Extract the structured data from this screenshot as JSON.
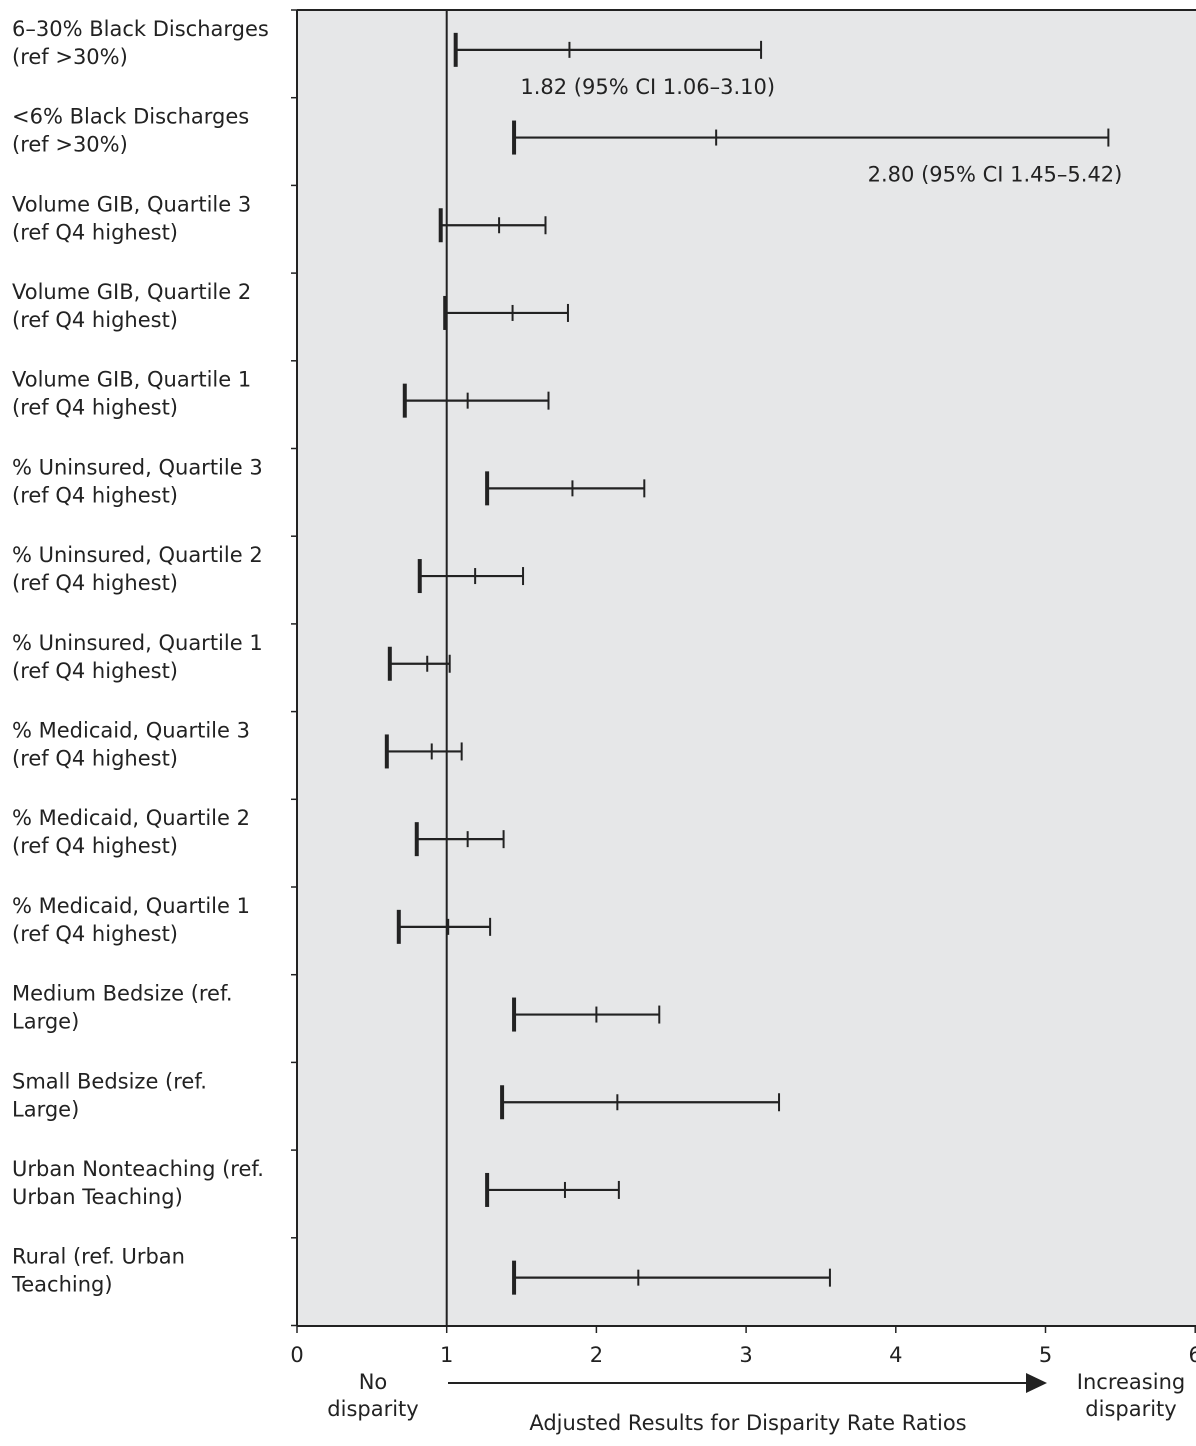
{
  "chart_data": {
    "type": "forest",
    "xlabel": "Adjusted Results for Disparity Rate Ratios",
    "x_tick_labels": [
      "0",
      "1",
      "2",
      "3",
      "4",
      "5",
      "6"
    ],
    "xlim": [
      0,
      6
    ],
    "reference_value": 1,
    "reference_label": "No disparity",
    "direction_label": "Increasing disparity",
    "grid": false,
    "colors": {
      "panel": "#e6e7e8",
      "ink": "#222222"
    },
    "rows": [
      {
        "label": "6–30% Black Discharges (ref >30%)",
        "estimate": 1.82,
        "ci_low": 1.06,
        "ci_high": 3.1,
        "annotation": "1.82 (95% CI 1.06–3.10)"
      },
      {
        "label": "<6% Black Discharges (ref >30%)",
        "estimate": 2.8,
        "ci_low": 1.45,
        "ci_high": 5.42,
        "annotation": "2.80 (95% CI 1.45–5.42)"
      },
      {
        "label": "Volume GIB, Quartile 3 (ref Q4 highest)",
        "estimate": 1.35,
        "ci_low": 0.96,
        "ci_high": 1.66,
        "annotation": ""
      },
      {
        "label": "Volume GIB, Quartile 2 (ref Q4 highest)",
        "estimate": 1.44,
        "ci_low": 0.99,
        "ci_high": 1.81,
        "annotation": ""
      },
      {
        "label": "Volume GIB, Quartile 1 (ref Q4 highest)",
        "estimate": 1.14,
        "ci_low": 0.72,
        "ci_high": 1.68,
        "annotation": ""
      },
      {
        "label": "% Uninsured, Quartile 3 (ref Q4 highest)",
        "estimate": 1.84,
        "ci_low": 1.27,
        "ci_high": 2.32,
        "annotation": ""
      },
      {
        "label": "% Uninsured, Quartile 2 (ref Q4 highest)",
        "estimate": 1.19,
        "ci_low": 0.82,
        "ci_high": 1.51,
        "annotation": ""
      },
      {
        "label": "% Uninsured, Quartile 1 (ref Q4 highest)",
        "estimate": 0.87,
        "ci_low": 0.62,
        "ci_high": 1.02,
        "annotation": ""
      },
      {
        "label": "% Medicaid, Quartile 3 (ref Q4 highest)",
        "estimate": 0.9,
        "ci_low": 0.6,
        "ci_high": 1.1,
        "annotation": ""
      },
      {
        "label": "% Medicaid, Quartile 2 (ref Q4 highest)",
        "estimate": 1.14,
        "ci_low": 0.8,
        "ci_high": 1.38,
        "annotation": ""
      },
      {
        "label": "% Medicaid, Quartile 1 (ref Q4 highest)",
        "estimate": 1.01,
        "ci_low": 0.68,
        "ci_high": 1.29,
        "annotation": ""
      },
      {
        "label": "Medium Bedsize (ref. Large)",
        "estimate": 2.0,
        "ci_low": 1.45,
        "ci_high": 2.42,
        "annotation": ""
      },
      {
        "label": "Small Bedsize (ref. Large)",
        "estimate": 2.14,
        "ci_low": 1.37,
        "ci_high": 3.22,
        "annotation": ""
      },
      {
        "label": "Urban Nonteaching (ref. Urban Teaching)",
        "estimate": 1.79,
        "ci_low": 1.27,
        "ci_high": 2.15,
        "annotation": ""
      },
      {
        "label": "Rural (ref. Urban Teaching)",
        "estimate": 2.28,
        "ci_low": 1.45,
        "ci_high": 3.56,
        "annotation": ""
      }
    ]
  }
}
